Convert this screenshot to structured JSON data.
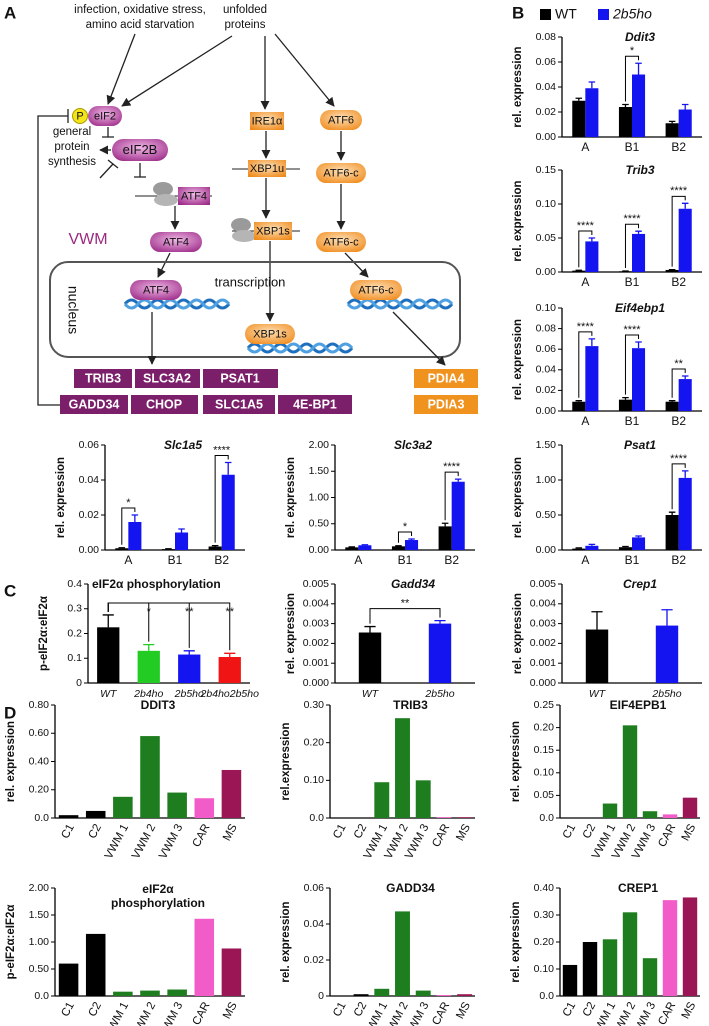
{
  "panel_labels": [
    "A",
    "B",
    "C",
    "D"
  ],
  "diagram": {
    "stress": [
      "infection, oxidative stress,",
      "amino acid starvation"
    ],
    "unfolded": [
      "unfolded",
      "proteins"
    ],
    "phospho": "P",
    "eif2": "eIF2",
    "eif2b": "eIF2B",
    "synthesis": [
      "general",
      "protein",
      "synthesis"
    ],
    "vwm": "VWM",
    "nodes": [
      "ATF4",
      "ATF4",
      "ATF4",
      "IRE1α",
      "XBP1u",
      "XBP1s",
      "XBP1s",
      "ATF6",
      "ATF6-c",
      "ATF6-c",
      "ATF6-c"
    ],
    "nucleus": "nucleus",
    "transcription": "transcription",
    "isr_genes": [
      "TRIB3",
      "SLC3A2",
      "PSAT1",
      "GADD34",
      "CHOP",
      "SLC1A5",
      "4E-BP1"
    ],
    "atf6_genes": [
      "PDIA4",
      "PDIA3"
    ]
  },
  "chart_data": [
    {
      "type": "bar",
      "title": "Ddit3",
      "y_label": "rel. expression",
      "categories": [
        "A",
        "B1",
        "B2"
      ],
      "series": [
        {
          "name": "WT",
          "color": "#000000",
          "values": [
            0.029,
            0.024,
            0.011
          ],
          "errors": [
            0.002,
            0.002,
            0.0015
          ]
        },
        {
          "name": "2b5ho",
          "color": "#1414f0",
          "values": [
            0.039,
            0.05,
            0.022
          ],
          "errors": [
            0.005,
            0.009,
            0.004
          ]
        }
      ],
      "ylim": [
        0,
        0.08
      ],
      "yticks": [
        {
          "value": 0,
          "label": "0.00"
        },
        0.02,
        0.04,
        0.06,
        0.08
      ],
      "annotations": [
        {
          "category": "B1",
          "label": "*"
        }
      ]
    },
    {
      "type": "bar",
      "title": "Trib3",
      "y_label": "rel. expression",
      "categories": [
        "A",
        "B1",
        "B2"
      ],
      "series": [
        {
          "name": "WT",
          "color": "#000000",
          "values": [
            0.002,
            0.001,
            0.003
          ],
          "errors": [
            0.0005,
            0.0005,
            0.0005
          ]
        },
        {
          "name": "2b5ho",
          "color": "#1414f0",
          "values": [
            0.045,
            0.056,
            0.093
          ],
          "errors": [
            0.005,
            0.004,
            0.008
          ]
        }
      ],
      "ylim": [
        0,
        0.15
      ],
      "yticks": [
        {
          "value": 0,
          "label": "0.00"
        },
        0.05,
        {
          "value": 0.1,
          "label": "0.10"
        },
        0.15
      ],
      "annotations": [
        {
          "category": "A",
          "label": "****"
        },
        {
          "category": "B1",
          "label": "****"
        },
        {
          "category": "B2",
          "label": "****"
        }
      ]
    },
    {
      "type": "bar",
      "title": "Eif4ebp1",
      "y_label": "rel. expression",
      "categories": [
        "A",
        "B1",
        "B2"
      ],
      "series": [
        {
          "name": "WT",
          "color": "#000000",
          "values": [
            0.009,
            0.011,
            0.009
          ],
          "errors": [
            0.001,
            0.002,
            0.001
          ]
        },
        {
          "name": "2b5ho",
          "color": "#1414f0",
          "values": [
            0.063,
            0.061,
            0.031
          ],
          "errors": [
            0.007,
            0.006,
            0.003
          ]
        }
      ],
      "ylim": [
        0,
        0.1
      ],
      "yticks": [
        {
          "value": 0,
          "label": "0.00"
        },
        0.02,
        0.04,
        0.06,
        0.08,
        {
          "value": 0.1,
          "label": "0.10"
        }
      ],
      "annotations": [
        {
          "category": "A",
          "label": "****"
        },
        {
          "category": "B1",
          "label": "****"
        },
        {
          "category": "B2",
          "label": "**"
        }
      ]
    },
    {
      "type": "bar",
      "title": "Slc1a5",
      "y_label": "rel. expression",
      "categories": [
        "A",
        "B1",
        "B2"
      ],
      "series": [
        {
          "name": "WT",
          "color": "#000000",
          "values": [
            0.001,
            0.0005,
            0.002
          ],
          "errors": [
            0.0003,
            0.0002,
            0.0005
          ]
        },
        {
          "name": "2b5ho",
          "color": "#1414f0",
          "values": [
            0.016,
            0.01,
            0.043
          ],
          "errors": [
            0.004,
            0.002,
            0.007
          ]
        }
      ],
      "ylim": [
        0,
        0.06
      ],
      "yticks": [
        {
          "value": 0,
          "label": "0.00"
        },
        0.02,
        0.04,
        0.06
      ],
      "annotations": [
        {
          "category": "A",
          "label": "*"
        },
        {
          "category": "B2",
          "label": "****"
        }
      ]
    },
    {
      "type": "bar",
      "title": "Slc3a2",
      "y_label": "rel. expression",
      "categories": [
        "A",
        "B1",
        "B2"
      ],
      "series": [
        {
          "name": "WT",
          "color": "#000000",
          "values": [
            0.05,
            0.07,
            0.45
          ],
          "errors": [
            0.01,
            0.01,
            0.06
          ]
        },
        {
          "name": "2b5ho",
          "color": "#1414f0",
          "values": [
            0.09,
            0.19,
            1.3
          ],
          "errors": [
            0.01,
            0.02,
            0.05
          ]
        }
      ],
      "ylim": [
        0,
        2
      ],
      "yticks": [
        {
          "value": 0,
          "label": "0.00"
        },
        {
          "value": 0.5,
          "label": "0.50"
        },
        {
          "value": 1,
          "label": "1.00"
        },
        {
          "value": 1.5,
          "label": "1.50"
        },
        {
          "value": 2,
          "label": "2.00"
        }
      ],
      "annotations": [
        {
          "category": "B1",
          "label": "*"
        },
        {
          "category": "B2",
          "label": "****"
        }
      ]
    },
    {
      "type": "bar",
      "title": "Psat1",
      "y_label": "rel. expression",
      "categories": [
        "A",
        "B1",
        "B2"
      ],
      "series": [
        {
          "name": "WT",
          "color": "#000000",
          "values": [
            0.02,
            0.04,
            0.5
          ],
          "errors": [
            0.01,
            0.01,
            0.04
          ]
        },
        {
          "name": "2b5ho",
          "color": "#1414f0",
          "values": [
            0.06,
            0.18,
            1.03
          ],
          "errors": [
            0.02,
            0.02,
            0.1
          ]
        }
      ],
      "ylim": [
        0,
        1.5
      ],
      "yticks": [
        {
          "value": 0,
          "label": "0.00"
        },
        {
          "value": 0.5,
          "label": "0.50"
        },
        {
          "value": 1,
          "label": "1.00"
        },
        {
          "value": 1.5,
          "label": "1.50"
        }
      ],
      "annotations": [
        {
          "category": "B2",
          "label": "****"
        }
      ]
    },
    {
      "type": "bar",
      "title": "eIF2α phosphorylation",
      "y_label": "p-eIF2α:eIF2α",
      "categories": [
        "WT",
        "2b4ho",
        "2b5ho",
        "2b4ho2b5ho"
      ],
      "values": [
        0.225,
        0.13,
        0.115,
        0.105
      ],
      "errors": [
        0.05,
        0.025,
        0.015,
        0.015
      ],
      "colors": [
        "#000000",
        "#22cc22",
        "#1414f0",
        "#f01414"
      ],
      "ylim": [
        0,
        0.4
      ],
      "yticks": [
        0,
        0.1,
        0.2,
        0.3,
        0.4
      ],
      "annotations": [
        {
          "from": "WT",
          "to": "2b4ho",
          "label": "*"
        },
        {
          "from": "WT",
          "to": "2b5ho",
          "label": "**"
        },
        {
          "from": "WT",
          "to": "2b4ho2b5ho",
          "label": "**"
        }
      ]
    },
    {
      "type": "bar",
      "title": "Gadd34",
      "y_label": "rel. expression",
      "categories": [
        "WT",
        "2b5ho"
      ],
      "values": [
        0.00255,
        0.003
      ],
      "errors": [
        0.0003,
        0.00015
      ],
      "colors": [
        "#000000",
        "#1414f0"
      ],
      "ylim": [
        0,
        0.005
      ],
      "yticks": [
        {
          "value": 0,
          "label": "0.000"
        },
        0.001,
        0.002,
        0.003,
        0.004,
        0.005
      ],
      "annotations": [
        {
          "from": "WT",
          "to": "2b5ho",
          "label": "**"
        }
      ]
    },
    {
      "type": "bar",
      "title": "Crep1",
      "y_label": "rel. expression",
      "categories": [
        "WT",
        "2b5ho"
      ],
      "values": [
        0.0027,
        0.0029
      ],
      "errors": [
        0.0009,
        0.0008
      ],
      "colors": [
        "#000000",
        "#1414f0"
      ],
      "ylim": [
        0,
        0.005
      ],
      "yticks": [
        {
          "value": 0,
          "label": "0.000"
        },
        0.001,
        0.002,
        0.003,
        0.004,
        0.005
      ]
    },
    {
      "type": "bar",
      "title": "DDIT3",
      "y_label": "rel. expression",
      "categories": [
        "C1",
        "C2",
        "VWM 1",
        "VWM 2",
        "VWM 3",
        "CAR",
        "MS"
      ],
      "values": [
        0.02,
        0.05,
        0.15,
        0.58,
        0.18,
        0.14,
        0.34
      ],
      "colors": [
        "#000000",
        "#000000",
        "#1e7d1e",
        "#1e7d1e",
        "#1e7d1e",
        "#f25cc8",
        "#9a1654"
      ],
      "ylim": [
        0,
        0.8
      ],
      "yticks": [
        {
          "value": 0,
          "label": "0.0"
        },
        {
          "value": 0.2,
          "label": "0.20"
        },
        {
          "value": 0.4,
          "label": "0.40"
        },
        {
          "value": 0.6,
          "label": "0.60"
        },
        {
          "value": 0.8,
          "label": "0.80"
        }
      ]
    },
    {
      "type": "bar",
      "title": "TRIB3",
      "y_label": "rel.expression",
      "categories": [
        "C1",
        "C2",
        "VWM 1",
        "VWM 2",
        "VWM 3",
        "CAR",
        "MS"
      ],
      "values": [
        0,
        0,
        0.095,
        0.265,
        0.1,
        0.002,
        0.002
      ],
      "colors": [
        "#000000",
        "#000000",
        "#1e7d1e",
        "#1e7d1e",
        "#1e7d1e",
        "#f25cc8",
        "#9a1654"
      ],
      "ylim": [
        0,
        0.3
      ],
      "yticks": [
        {
          "value": 0,
          "label": "0.0"
        },
        {
          "value": 0.1,
          "label": "0.10"
        },
        {
          "value": 0.2,
          "label": "0.20"
        },
        {
          "value": 0.3,
          "label": "0.30"
        }
      ]
    },
    {
      "type": "bar",
      "title": "EIF4EPB1",
      "y_label": "rel. expression",
      "categories": [
        "C1",
        "C2",
        "VWM 1",
        "VWM 2",
        "VWM 3",
        "CAR",
        "MS"
      ],
      "values": [
        0,
        0,
        0.032,
        0.205,
        0.015,
        0.008,
        0.045
      ],
      "colors": [
        "#000000",
        "#000000",
        "#1e7d1e",
        "#1e7d1e",
        "#1e7d1e",
        "#f25cc8",
        "#9a1654"
      ],
      "ylim": [
        0,
        0.25
      ],
      "yticks": [
        {
          "value": 0,
          "label": "0.0"
        },
        0.05,
        {
          "value": 0.1,
          "label": "0.10"
        },
        0.15,
        {
          "value": 0.2,
          "label": "0.20"
        },
        0.25
      ]
    },
    {
      "type": "bar",
      "title": [
        "eIF2α",
        "phosphorylation"
      ],
      "y_label": "p-eIF2α:eIF2α",
      "categories": [
        "C1",
        "C2",
        "VWM 1",
        "VWM 2",
        "VWM 3",
        "CAR",
        "MS"
      ],
      "values": [
        0.6,
        1.15,
        0.08,
        0.1,
        0.12,
        1.43,
        0.88
      ],
      "colors": [
        "#000000",
        "#000000",
        "#1e7d1e",
        "#1e7d1e",
        "#1e7d1e",
        "#f25cc8",
        "#9a1654"
      ],
      "ylim": [
        0,
        2
      ],
      "yticks": [
        {
          "value": 0,
          "label": "0.0"
        },
        {
          "value": 0.5,
          "label": "0.50"
        },
        {
          "value": 1,
          "label": "1.00"
        },
        {
          "value": 1.5,
          "label": "1.50"
        },
        {
          "value": 2,
          "label": "2.00"
        }
      ]
    },
    {
      "type": "bar",
      "title": "GADD34",
      "y_label": "rel. expression",
      "categories": [
        "C1",
        "C2",
        "VWM 1",
        "VWM 2",
        "VWM 3",
        "CAR",
        "MS"
      ],
      "values": [
        0,
        0.001,
        0.004,
        0.047,
        0.003,
        0.0005,
        0.001
      ],
      "colors": [
        "#000000",
        "#000000",
        "#1e7d1e",
        "#1e7d1e",
        "#1e7d1e",
        "#f25cc8",
        "#9a1654"
      ],
      "ylim": [
        0,
        0.06
      ],
      "yticks": [
        0,
        0.02,
        0.04,
        0.06
      ]
    },
    {
      "type": "bar",
      "title": "CREP1",
      "y_label": "rel. expression",
      "categories": [
        "C1",
        "C2",
        "VWM 1",
        "VWM 2",
        "VWM 3",
        "CAR",
        "MS"
      ],
      "values": [
        0.115,
        0.2,
        0.21,
        0.31,
        0.14,
        0.355,
        0.365
      ],
      "colors": [
        "#000000",
        "#000000",
        "#1e7d1e",
        "#1e7d1e",
        "#1e7d1e",
        "#f25cc8",
        "#9a1654"
      ],
      "ylim": [
        0,
        0.4
      ],
      "yticks": [
        {
          "value": 0,
          "label": "0.0"
        },
        {
          "value": 0.1,
          "label": "0.10"
        },
        {
          "value": 0.2,
          "label": "0.20"
        },
        {
          "value": 0.3,
          "label": "0.30"
        },
        {
          "value": 0.4,
          "label": "0.40"
        }
      ]
    }
  ]
}
